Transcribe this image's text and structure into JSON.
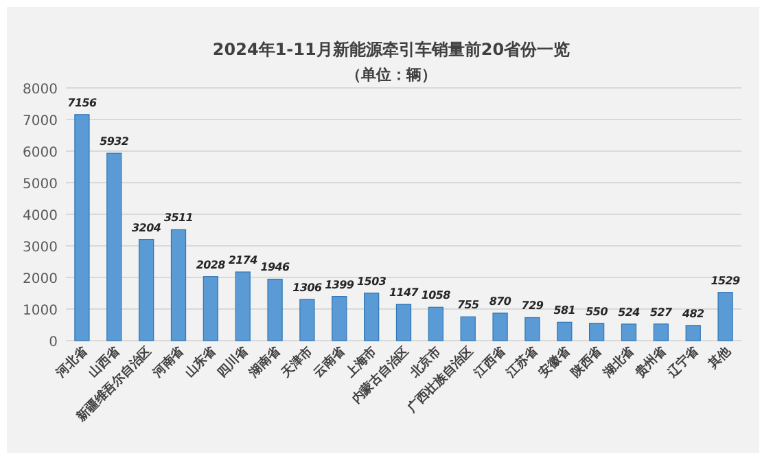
{
  "chart_data": {
    "type": "bar",
    "title": "2024年1-11月新能源牵引车销量前20省份一览",
    "subtitle": "（单位：辆）",
    "categories": [
      "河北省",
      "山西省",
      "新疆维吾尔自治区",
      "河南省",
      "山东省",
      "四川省",
      "湖南省",
      "天津市",
      "云南省",
      "上海市",
      "内蒙古自治区",
      "北京市",
      "广西壮族自治区",
      "江西省",
      "江苏省",
      "安徽省",
      "陕西省",
      "湖北省",
      "贵州省",
      "辽宁省",
      "其他"
    ],
    "values": [
      7156,
      5932,
      3204,
      3511,
      2028,
      2174,
      1946,
      1306,
      1399,
      1503,
      1147,
      1058,
      755,
      870,
      729,
      581,
      550,
      524,
      527,
      482,
      1529
    ],
    "color": "#5b9bd5",
    "ylim": [
      0,
      8000
    ],
    "yticks": [
      0,
      1000,
      2000,
      3000,
      4000,
      5000,
      6000,
      7000,
      8000
    ],
    "grid": "y",
    "data_labels": true
  }
}
